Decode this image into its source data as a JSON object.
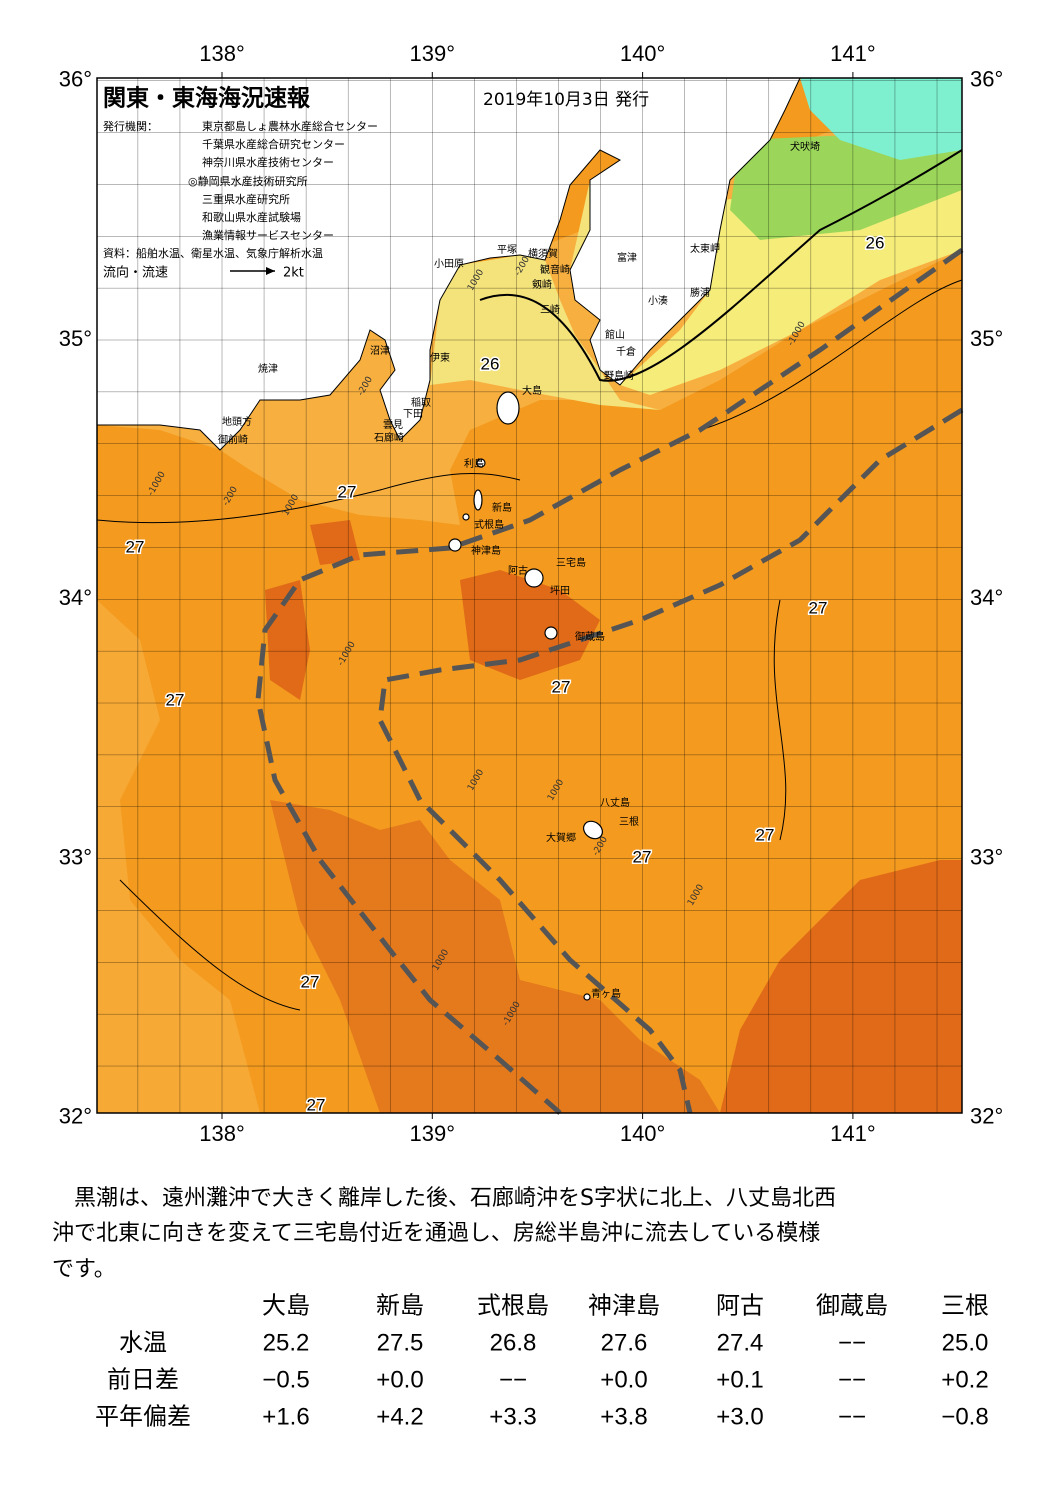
{
  "header": {
    "title": "関東・東海海況速報",
    "date": "2019年10月3日 発行",
    "issuer_label": "発行機関：",
    "issuers": [
      "東京都島しょ農林水産総合センター",
      "千葉県水産総合研究センター",
      "神奈川県水産技術センター",
      "◎静岡県水産技術研究所",
      "三重県水産研究所",
      "和歌山県水産試験場",
      "漁業情報サービスセンター"
    ],
    "source": "資料：船舶水温、衛星水温、気象庁解析水温",
    "legend_label": "流向・流速",
    "legend_speed": "2kt"
  },
  "map": {
    "lon_ticks": [
      {
        "value": 138,
        "label": "138°"
      },
      {
        "value": 139,
        "label": "139°"
      },
      {
        "value": 140,
        "label": "140°"
      },
      {
        "value": 141,
        "label": "141°"
      }
    ],
    "lat_ticks": [
      {
        "value": 36,
        "label": "36°"
      },
      {
        "value": 35,
        "label": "35°"
      },
      {
        "value": 34,
        "label": "34°"
      },
      {
        "value": 33,
        "label": "33°"
      },
      {
        "value": 32,
        "label": "32°"
      }
    ],
    "places": [
      "犬吠埼",
      "太東岬",
      "勝浦",
      "小湊",
      "富津",
      "横須賀",
      "観音崎",
      "剱崎",
      "三崎",
      "館山",
      "千倉",
      "野島崎",
      "平塚",
      "小田原",
      "伊東",
      "沼津",
      "稲取",
      "下田",
      "雲見",
      "石廊崎",
      "焼津",
      "地頭方",
      "御前崎",
      "大島",
      "利島",
      "新島",
      "式根島",
      "神津島",
      "三宅島",
      "阿古",
      "坪田",
      "御蔵島",
      "八丈島",
      "三根",
      "大賀郷",
      "青ヶ島"
    ],
    "isotherm_labels": [
      26,
      26,
      27,
      27,
      27,
      27,
      27,
      27,
      27,
      27,
      27
    ],
    "depth_labels": [
      "-200",
      "1000",
      "-200",
      "-1000",
      "-1000",
      "1000",
      "-200",
      "-1000",
      "1000",
      "1000",
      "1000",
      "-1000",
      "-200",
      "1000"
    ]
  },
  "description": [
    "　黒潮は、遠州灘沖で大きく離岸した後、石廊崎沖をS字状に北上、八丈島北西",
    "沖で北東に向きを変えて三宅島付近を通過し、房総半島沖に流去している模様",
    "です。"
  ],
  "table": {
    "columns": [
      "大島",
      "新島",
      "式根島",
      "神津島",
      "阿古",
      "御蔵島",
      "三根"
    ],
    "rows": [
      {
        "label": "水温",
        "cells": [
          "25.2",
          "27.5",
          "26.8",
          "27.6",
          "27.4",
          "−−",
          "25.0"
        ]
      },
      {
        "label": "前日差",
        "cells": [
          "−0.5",
          "+0.0",
          "−−",
          "+0.0",
          "+0.1",
          "−−",
          "+0.2"
        ]
      },
      {
        "label": "平年偏差",
        "cells": [
          "+1.6",
          "+4.2",
          "+3.3",
          "+3.8",
          "+3.0",
          "−−",
          "−0.8"
        ]
      }
    ]
  }
}
